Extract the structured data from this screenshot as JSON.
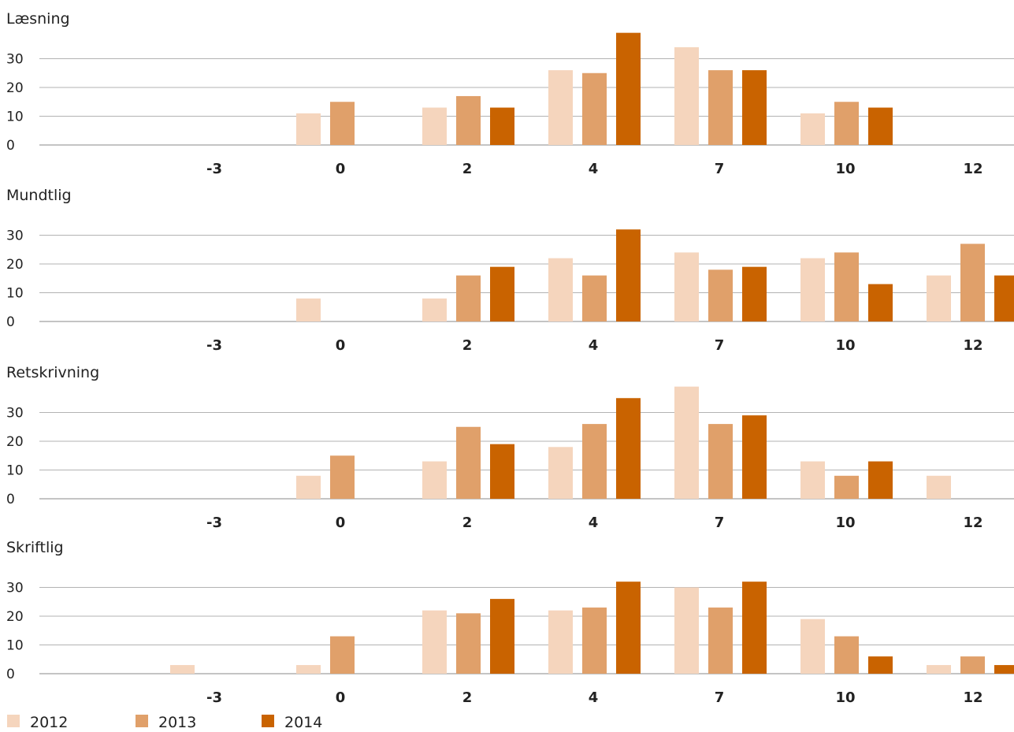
{
  "chart_data": {
    "type": "bar",
    "categories": [
      "-3",
      "0",
      "2",
      "4",
      "7",
      "10",
      "12"
    ],
    "yticks": [
      0,
      10,
      20,
      30
    ],
    "ylim": [
      0,
      40
    ],
    "legend": {
      "placement": "bottom-left",
      "entries": [
        {
          "name": "2012",
          "color": "#f5d5bd"
        },
        {
          "name": "2013",
          "color": "#e0a06a"
        },
        {
          "name": "2014",
          "color": "#c96300"
        }
      ]
    },
    "panels": [
      {
        "title": "Læsning",
        "series": [
          {
            "name": "2012",
            "values": [
              0,
              11,
              13,
              26,
              34,
              11,
              0
            ]
          },
          {
            "name": "2013",
            "values": [
              0,
              15,
              17,
              25,
              26,
              15,
              0
            ]
          },
          {
            "name": "2014",
            "values": [
              0,
              0,
              13,
              39,
              26,
              13,
              0
            ]
          }
        ]
      },
      {
        "title": "Mundtlig",
        "series": [
          {
            "name": "2012",
            "values": [
              0,
              8,
              8,
              22,
              24,
              22,
              16
            ]
          },
          {
            "name": "2013",
            "values": [
              0,
              0,
              16,
              16,
              18,
              24,
              27
            ]
          },
          {
            "name": "2014",
            "values": [
              0,
              0,
              19,
              32,
              19,
              13,
              16
            ]
          }
        ]
      },
      {
        "title": "Retskrivning",
        "series": [
          {
            "name": "2012",
            "values": [
              0,
              8,
              13,
              18,
              39,
              13,
              8
            ]
          },
          {
            "name": "2013",
            "values": [
              0,
              15,
              25,
              26,
              26,
              8,
              0
            ]
          },
          {
            "name": "2014",
            "values": [
              0,
              0,
              19,
              35,
              29,
              13,
              0
            ]
          }
        ]
      },
      {
        "title": "Skriftlig",
        "series": [
          {
            "name": "2012",
            "values": [
              3,
              3,
              22,
              22,
              30,
              19,
              3
            ]
          },
          {
            "name": "2013",
            "values": [
              0,
              13,
              21,
              23,
              23,
              13,
              6
            ]
          },
          {
            "name": "2014",
            "values": [
              0,
              0,
              26,
              32,
              32,
              6,
              3
            ]
          }
        ]
      }
    ]
  }
}
